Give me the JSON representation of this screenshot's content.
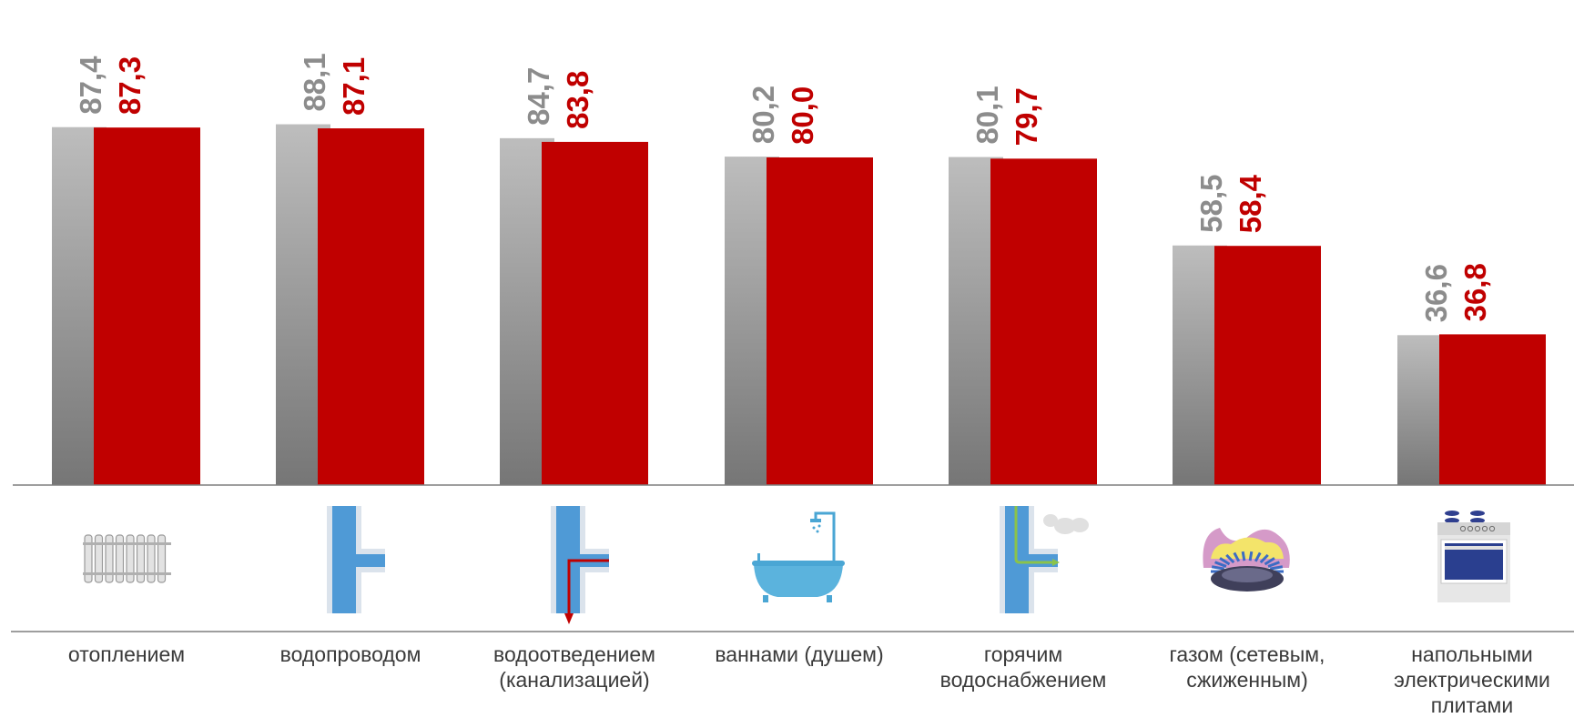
{
  "chart_data": {
    "type": "bar",
    "title": "",
    "xlabel": "",
    "ylabel": "",
    "ylim": [
      0,
      100
    ],
    "categories": [
      [
        "отоплением"
      ],
      [
        "водопроводом"
      ],
      [
        "водоотведением",
        "(канализацией)"
      ],
      [
        "ваннами (душем)"
      ],
      [
        "горячим",
        "водоснабжением"
      ],
      [
        "газом (сетевым,",
        "сжиженным)"
      ],
      [
        "напольными",
        "электрическими",
        "плитами"
      ]
    ],
    "value_labels": {
      "gray": [
        "87,4",
        "88,1",
        "84,7",
        "80,2",
        "80,1",
        "58,5",
        "36,6"
      ],
      "red": [
        "87,3",
        "87,1",
        "83,8",
        "80,0",
        "79,7",
        "58,4",
        "36,8"
      ]
    },
    "series": [
      {
        "values": [
          87.4,
          88.1,
          84.7,
          80.2,
          80.1,
          58.5,
          36.6
        ]
      },
      {
        "values": [
          87.3,
          87.1,
          83.8,
          80.0,
          79.7,
          58.4,
          36.8
        ]
      }
    ],
    "icons": [
      "radiator-icon",
      "water-pipe-icon",
      "sewer-pipe-icon",
      "bathtub-icon",
      "hot-water-pipe-icon",
      "gas-burner-icon",
      "electric-stove-icon"
    ],
    "colors": {
      "series_gray_top": "#bdbdbd",
      "series_gray_bottom": "#767676",
      "series_red": "#c00000",
      "label_gray": "#8c8c8c",
      "label_red": "#c00000",
      "axis_line": "#7f7f7f"
    },
    "grid": false,
    "legend": "none"
  }
}
